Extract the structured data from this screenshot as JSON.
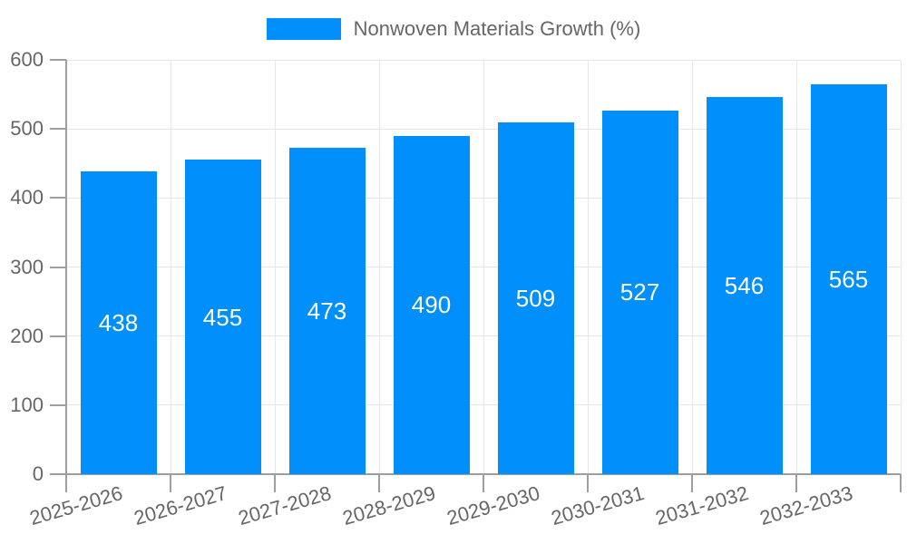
{
  "chart_data": {
    "type": "bar",
    "series_name": "Nonwoven Materials Growth (%)",
    "categories": [
      "2025-2026",
      "2026-2027",
      "2027-2028",
      "2028-2029",
      "2029-2030",
      "2030-2031",
      "2031-2032",
      "2032-2033"
    ],
    "values": [
      438,
      455,
      473,
      490,
      509,
      527,
      546,
      565
    ],
    "ylim": [
      0,
      600
    ],
    "yticks": [
      0,
      100,
      200,
      300,
      400,
      500,
      600
    ],
    "grid": true,
    "legend_position": "top",
    "bar_label_position": "inside-center",
    "x_label_rotation_deg": -16,
    "colors": {
      "bar": "#008FFB",
      "bar_label": "#FFFFFF",
      "axis_text": "#666666",
      "grid_line": "#E7E7E7",
      "axis_line": "#9E9E9E"
    }
  }
}
